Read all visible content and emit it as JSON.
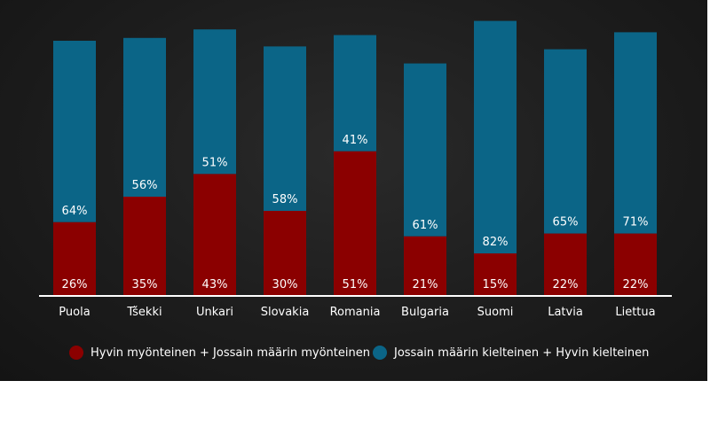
{
  "chart_data": {
    "type": "bar",
    "stacked": true,
    "categories": [
      "Puola",
      "Tšekki",
      "Unkari",
      "Slovakia",
      "Romania",
      "Bulgaria",
      "Suomi",
      "Latvia",
      "Liettua"
    ],
    "series": [
      {
        "name": "Hyvin myönteinen + Jossain määrin myönteinen",
        "color": "#8b0000",
        "values": [
          26,
          35,
          43,
          30,
          51,
          21,
          15,
          22,
          22
        ],
        "labels": [
          "26%",
          "35%",
          "43%",
          "30%",
          "51%",
          "21%",
          "15%",
          "22%",
          "22%"
        ]
      },
      {
        "name": "Jossain määrin kielteinen + Hyvin kielteinen",
        "color": "#0b6587",
        "values": [
          64,
          56,
          51,
          58,
          41,
          61,
          82,
          65,
          71
        ],
        "labels": [
          "64%",
          "56%",
          "51%",
          "58%",
          "41%",
          "61%",
          "82%",
          "65%",
          "71%"
        ]
      }
    ],
    "ylim": [
      0,
      100
    ],
    "grid": false,
    "legend_position": "bottom"
  }
}
